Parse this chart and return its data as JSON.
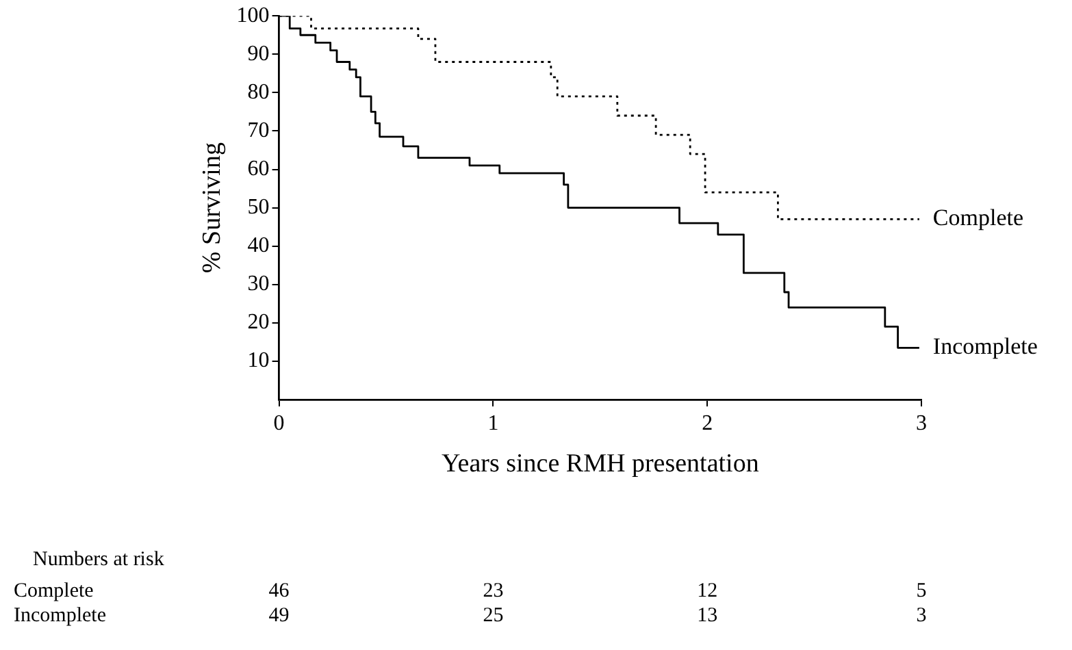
{
  "chart_data": {
    "type": "step",
    "xlabel": "Years since RMH presentation",
    "ylabel": "% Surviving",
    "xlim": [
      0,
      3
    ],
    "xticks": [
      0,
      1,
      2,
      3
    ],
    "ylim": [
      0,
      100
    ],
    "yticks": [
      10,
      20,
      30,
      40,
      50,
      60,
      70,
      80,
      90,
      100
    ],
    "grid": false,
    "legend": false,
    "marker": "none",
    "series": [
      {
        "name": "Complete",
        "color": "#000000",
        "line_style": "dotted",
        "x": [
          0,
          0.15,
          0.65,
          0.73,
          1.27,
          1.3,
          1.58,
          1.76,
          1.92,
          1.99,
          2.33,
          2.99
        ],
        "values": [
          100,
          96.7,
          94,
          88,
          84,
          79,
          74,
          69,
          64,
          54,
          47,
          47
        ]
      },
      {
        "name": "Incomplete",
        "color": "#000000",
        "line_style": "solid",
        "x": [
          0,
          0.05,
          0.1,
          0.17,
          0.24,
          0.27,
          0.33,
          0.36,
          0.38,
          0.43,
          0.45,
          0.47,
          0.58,
          0.65,
          0.89,
          1.03,
          1.33,
          1.35,
          1.87,
          2.05,
          2.17,
          2.36,
          2.38,
          2.83,
          2.89,
          2.99
        ],
        "values": [
          100,
          96.7,
          95,
          93,
          91,
          88,
          86,
          84,
          79,
          75,
          72,
          68.5,
          66,
          63,
          61,
          59,
          56,
          50,
          46,
          43,
          33,
          28,
          24,
          19,
          13.5,
          13.5
        ]
      }
    ],
    "annotations": [
      "Numbers at risk",
      "Complete",
      "46",
      "23",
      "12",
      "5",
      "Incomplete",
      "49",
      "25",
      "13",
      "3"
    ]
  }
}
